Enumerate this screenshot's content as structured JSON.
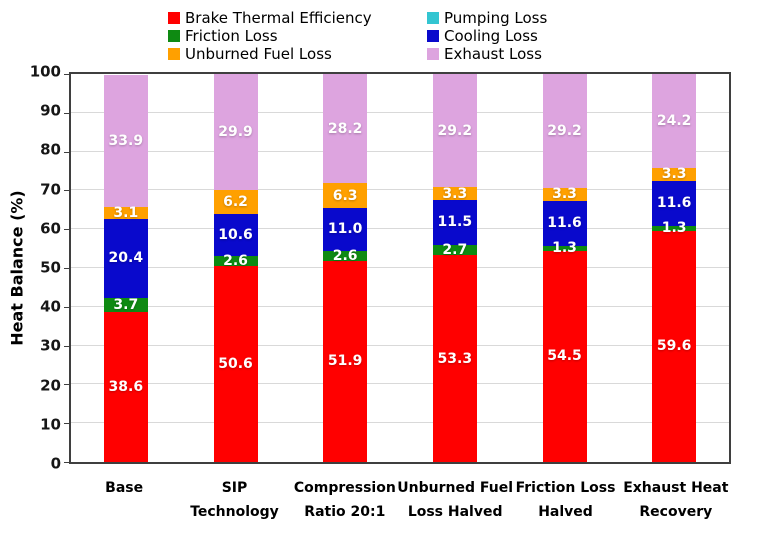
{
  "chart_data": {
    "type": "bar",
    "stacked": true,
    "title": "",
    "xlabel": "",
    "ylabel": "Heat Balance (%)",
    "ylim": [
      0,
      100
    ],
    "yticks": [
      0,
      10,
      20,
      30,
      40,
      50,
      60,
      70,
      80,
      90,
      100
    ],
    "grid": true,
    "legend_position": "top",
    "value_label_color": "#ffffff",
    "categories": [
      "Base",
      "SIP Technology",
      "Compression Ratio 20:1",
      "Unburned Fuel Loss Halved",
      "Friction Loss Halved",
      "Exhaust Heat Recovery"
    ],
    "category_lines": [
      [
        "Base"
      ],
      [
        "SIP",
        "Technology"
      ],
      [
        "Compression",
        "Ratio 20:1"
      ],
      [
        "Unburned Fuel",
        "Loss Halved"
      ],
      [
        "Friction Loss",
        "Halved"
      ],
      [
        "Exhaust Heat",
        "Recovery"
      ]
    ],
    "series": [
      {
        "name": "Brake Thermal Efficiency",
        "color": "#ff0000",
        "values": [
          38.6,
          50.6,
          51.9,
          53.3,
          54.5,
          59.6
        ]
      },
      {
        "name": "Friction Loss",
        "color": "#0e8a12",
        "values": [
          3.7,
          2.6,
          2.6,
          2.7,
          1.3,
          1.3
        ]
      },
      {
        "name": "Unburned Fuel Loss",
        "color": "#ffa000",
        "values": [
          3.1,
          6.2,
          6.3,
          3.3,
          3.3,
          3.3
        ]
      },
      {
        "name": "Pumping Loss",
        "color": "#33c5d1",
        "values": [
          0,
          0,
          0,
          0,
          0,
          0
        ]
      },
      {
        "name": "Cooling Loss",
        "color": "#0909cc",
        "values": [
          20.4,
          10.6,
          11.0,
          11.5,
          11.6,
          11.6
        ]
      },
      {
        "name": "Exhaust Loss",
        "color": "#dda4df",
        "values": [
          33.9,
          29.9,
          28.2,
          29.2,
          29.2,
          24.2
        ]
      }
    ],
    "stack_order": [
      "Brake Thermal Efficiency",
      "Friction Loss",
      "Cooling Loss",
      "Unburned Fuel Loss",
      "Pumping Loss",
      "Exhaust Loss"
    ],
    "legend_columns": [
      [
        "Brake Thermal Efficiency",
        "Friction Loss",
        "Unburned Fuel Loss"
      ],
      [
        "Pumping Loss",
        "Cooling Loss",
        "Exhaust Loss"
      ]
    ]
  }
}
